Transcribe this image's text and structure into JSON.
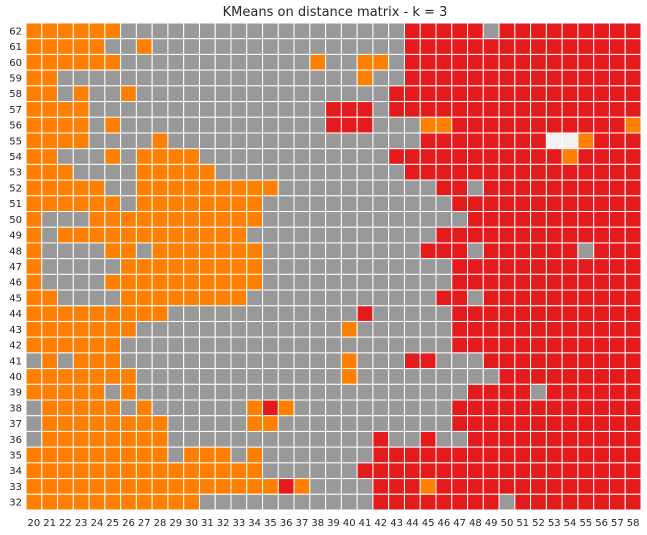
{
  "chart_data": {
    "type": "heatmap",
    "title": "KMeans on distance matrix - k = 3",
    "xlabel": "",
    "ylabel": "",
    "x": [
      20,
      21,
      22,
      23,
      24,
      25,
      26,
      27,
      28,
      29,
      30,
      31,
      32,
      33,
      34,
      35,
      36,
      37,
      38,
      39,
      40,
      41,
      42,
      43,
      44,
      45,
      46,
      47,
      48,
      49,
      50,
      51,
      52,
      53,
      54,
      55,
      56,
      57,
      58
    ],
    "y": [
      62,
      61,
      60,
      59,
      58,
      57,
      56,
      55,
      54,
      53,
      52,
      51,
      50,
      49,
      48,
      47,
      46,
      45,
      44,
      43,
      42,
      41,
      40,
      39,
      38,
      37,
      36,
      35,
      34,
      33,
      32
    ],
    "cluster_colors": {
      "O": "#ff7f00",
      "G": "#999999",
      "R": "#e41a1c",
      "W": "#f2f2f2"
    },
    "grid": true,
    "grid_color": "#ffffff",
    "cells": [
      "OOOOOOGGGGGGGGGGGGGGGGGGRRRRRGRRRRRRRRR",
      "OOOOOGGOGGGGGGGGGGGGGGGGRRRRRRRRRRRRRRR",
      "OOOOOOGGGGGGGGGGGGOGGOOGRRRRRRRRRRRRRRR",
      "OOGGGGGGGGGGGGGGGGGGGOGGRRRRRRRRRRRRRRR",
      "OOGOGGOGGGGGGGGGGGGGGGGRRRRRRRRRRRRRRRR",
      "OOOOGGGGGGGGGGGGGGGRRRGRRRRRRRRRRRRRRRR",
      "OOOOGOGGGGGGGGGGGGGRRRGGGOORRRRRRRRRRRO",
      "OOOOGGGGOGGGGGGGGGGGGGGGGRRRRRRRRWWORRR",
      "OOGGGOGOOOOGGGGGGGGGGGGRRRRRRRRRRRORRRR",
      "OOOGGGGOOOOOGGGGGGGGGGGGRRRRRRRRRRRRRRR",
      "OOOOOGGOOOOOOOOOGGGGGGGGGGRRGRRRRRRRRRR",
      "OOOOOOGOOOOOOOOGGGGGGGGGGGGRRRRRRRRRRRR",
      "OGGGOOOOOOOOOOOGGGGGGGGGGGGGRRRRRRRRRRR",
      "OGOOOOOOOOOOOOGGGGGGGGGGGGRRRRRRRRRRRRR",
      "OGGGGOOGOOOOOOOGGGGGGGGGGRRRGRRRRRRGRRR",
      "OGGGGGOOOOOOOOOGGGGGGGGGGGGRRRRRRRRRRRR",
      "OGGGGOOOOOOOOOOGGGGGGGGGGGGRRRRRRRRRRRR",
      "OOGGGGOOOOOOOOGGGGGGGGGGGGRRGRRRRRRRRRR",
      "OOOOOOOOOGGGGGGGGGGGGRGGGGGRRRRRRRRRRRR",
      "OOOOOOOGGGGGGGGGGGGGOGGGGGGRRRRRRRRRRRR",
      "OOOOOOGGGGGGGGGGGGGGGGGGGGGRRRRRRRRRRRR",
      "GOGOOOGGGGGGGGGGGGGGOGGGRRGGGRRRRRRRRRR",
      "OOOOOOOGGGGGGGGGGGGGOGGGGGGGGGRRRRRRRRR",
      "OOOOOGOGGGGGGGGGGGGGGGGGGGGGRRRRGRRRRRR",
      "GOOOOOGOGGGGGGOROGGGGGGGGGGRRRRRRRRRRRR",
      "GOOOOOOOOGGGGGOOGGGGGGGGGGGRRRRRRRRRRRR",
      "GOOOOOOOOGGGGGGGGGGGGGRGGRGGRRRRRRRRRRR",
      "OOOOOOOOOGOOOGOGGGGGGGRRRRRRRRRRRRRRRRR",
      "OOOOOOOOOOOOOOOGGGGGGRRRRRRRRRRRRRRRRRR",
      "OOOOOOOOOOOOOOOOROGGGGRRRORRRRRRRRRRRRR",
      "OOOOOOOOOOOGGGGGGGGGGGRRRRRRRRGRRRRRRRR"
    ]
  }
}
